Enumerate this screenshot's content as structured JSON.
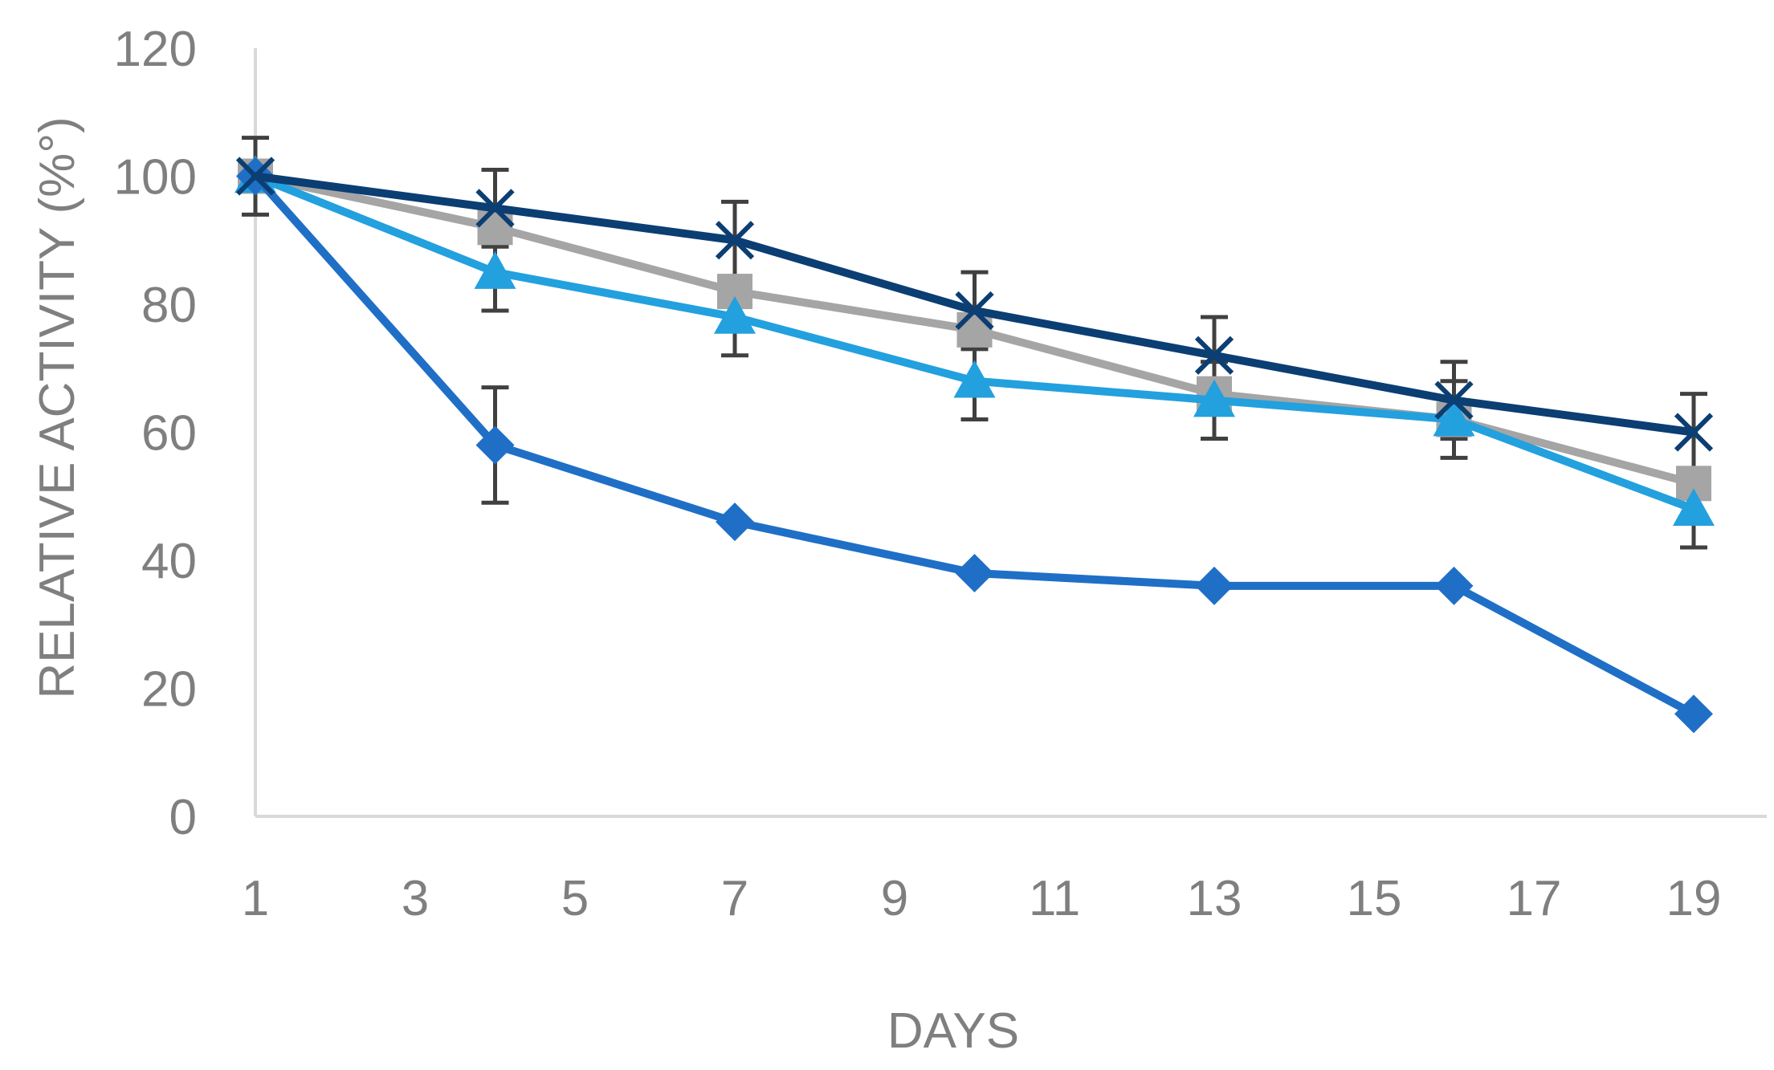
{
  "chart_data": {
    "type": "line",
    "title": "",
    "xlabel": "DAYS",
    "ylabel": "RELATIVE ACTIVITY (%°)",
    "xlim": [
      1,
      20
    ],
    "ylim": [
      0,
      120
    ],
    "xticks": [
      1,
      3,
      5,
      7,
      9,
      11,
      13,
      15,
      17,
      19
    ],
    "yticks": [
      0,
      20,
      40,
      60,
      80,
      100,
      120
    ],
    "grid": false,
    "legend": "none",
    "x": [
      1,
      4,
      7,
      10,
      13,
      16,
      19
    ],
    "series": [
      {
        "marker": "diamond",
        "color": "#1f6fc6",
        "values": [
          100,
          58,
          46,
          38,
          36,
          36,
          16
        ],
        "error": [
          0,
          9,
          0,
          0,
          0,
          0,
          0
        ]
      },
      {
        "marker": "square",
        "color": "#a5a5a5",
        "values": [
          100,
          92,
          82,
          76,
          66,
          62,
          52
        ],
        "error": [
          6,
          0,
          0,
          0,
          0,
          0,
          0
        ]
      },
      {
        "marker": "triangle",
        "color": "#23a0de",
        "values": [
          100,
          85,
          78,
          68,
          65,
          62,
          48
        ],
        "error": [
          0,
          6,
          6,
          6,
          6,
          6,
          6
        ]
      },
      {
        "marker": "x",
        "color": "#0b3e73",
        "values": [
          100,
          95,
          90,
          79,
          72,
          65,
          60
        ],
        "error": [
          0,
          6,
          6,
          6,
          6,
          6,
          6
        ]
      }
    ]
  }
}
